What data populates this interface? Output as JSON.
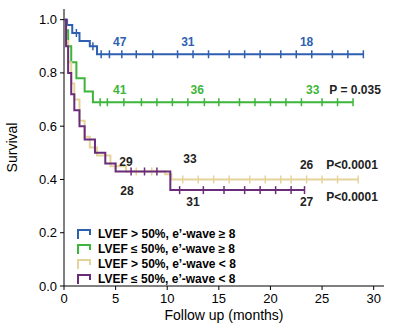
{
  "chart_data": {
    "type": "step",
    "x_label": "Follow up (months)",
    "y_label": "Survival",
    "xlim": [
      0,
      31
    ],
    "xticks": [
      0,
      5,
      10,
      15,
      20,
      25,
      30
    ],
    "ylim": [
      0,
      1.04
    ],
    "yticks": [
      {
        "value": 0,
        "label": "0.0"
      },
      {
        "value": 0.2,
        "label": "0.2"
      },
      {
        "value": 0.4,
        "label": "0.4"
      },
      {
        "value": 0.6,
        "label": "0.6"
      },
      {
        "value": 0.8,
        "label": "0.8"
      },
      {
        "value": 1,
        "label": "1.0"
      }
    ],
    "legend": "lower left",
    "grid": false,
    "series": [
      {
        "name": "LVEF > 50%, e’-wave ≥ 8",
        "color": "#2e5fb0",
        "marker": "tick",
        "x": [
          0,
          0.3,
          0.8,
          1.5,
          2.5,
          3.2,
          29
        ],
        "values": [
          1,
          0.98,
          0.95,
          0.92,
          0.9,
          0.87,
          0.87
        ],
        "censored": [
          1.2,
          2.8,
          3.6,
          4.4,
          5.6,
          7,
          8.6,
          11,
          12.5,
          14,
          16,
          17.5,
          19,
          21,
          22.5,
          24,
          26,
          27.5,
          29
        ]
      },
      {
        "name": "LVEF ≤ 50%, e’-wave ≥ 8",
        "color": "#3db53a",
        "marker": "tick",
        "x": [
          0,
          0.2,
          0.4,
          0.7,
          1.2,
          2,
          2.8,
          28
        ],
        "values": [
          1,
          0.96,
          0.9,
          0.84,
          0.78,
          0.73,
          0.69,
          0.69
        ],
        "censored": [
          3.5,
          4.2,
          5.8,
          7.5,
          9,
          10.5,
          12,
          13.6,
          15,
          17,
          18.5,
          20,
          21.5,
          23,
          25,
          26.5,
          28
        ]
      },
      {
        "name": "LVEF > 50%, e’-wave < 8",
        "color": "#e5d49a",
        "marker": "tick",
        "x": [
          0,
          0.2,
          0.4,
          0.7,
          1,
          1.5,
          2,
          2.5,
          3.2,
          4.5,
          6,
          9.8,
          10.4,
          28.5
        ],
        "values": [
          1,
          0.92,
          0.84,
          0.76,
          0.7,
          0.62,
          0.56,
          0.52,
          0.49,
          0.45,
          0.43,
          0.42,
          0.4,
          0.4
        ],
        "censored": [
          5,
          7,
          8.5,
          11.5,
          13,
          14.5,
          16,
          18,
          19.5,
          21,
          22,
          23.5,
          25,
          26.5,
          28.5
        ]
      },
      {
        "name": "LVEF ≤ 50%, e’-wave < 8",
        "color": "#6a2c7a",
        "marker": "tick",
        "x": [
          0,
          0.2,
          0.4,
          0.7,
          1,
          1.5,
          2,
          3,
          4,
          5,
          10.3,
          23.3
        ],
        "values": [
          1,
          0.9,
          0.8,
          0.72,
          0.66,
          0.6,
          0.55,
          0.5,
          0.46,
          0.43,
          0.36,
          0.36
        ],
        "censored": [
          6.5,
          7.8,
          9,
          11.2,
          13.5,
          15.5,
          17.5,
          19,
          20.5,
          22,
          23.3
        ]
      }
    ],
    "annotations": [
      {
        "text": "47",
        "x": 5.4,
        "y": 0.9,
        "color": "#2e5fb0"
      },
      {
        "text": "31",
        "x": 12,
        "y": 0.9,
        "color": "#2e5fb0"
      },
      {
        "text": "18",
        "x": 23.5,
        "y": 0.9,
        "color": "#2e5fb0"
      },
      {
        "text": "41",
        "x": 5.4,
        "y": 0.72,
        "color": "#3db53a"
      },
      {
        "text": "36",
        "x": 12.9,
        "y": 0.72,
        "color": "#3db53a"
      },
      {
        "text": "33",
        "x": 24.1,
        "y": 0.72,
        "color": "#3db53a"
      },
      {
        "text": "P = 0.035",
        "x": 28.2,
        "y": 0.72,
        "color": "#222222"
      },
      {
        "text": "29",
        "x": 6,
        "y": 0.45,
        "color": "#222222"
      },
      {
        "text": "33",
        "x": 12.2,
        "y": 0.46,
        "color": "#222222"
      },
      {
        "text": "26",
        "x": 23.5,
        "y": 0.44,
        "color": "#222222"
      },
      {
        "text": "P<0.0001",
        "x": 27.9,
        "y": 0.44,
        "color": "#222222"
      },
      {
        "text": "28",
        "x": 6.1,
        "y": 0.34,
        "color": "#222222"
      },
      {
        "text": "31",
        "x": 12.5,
        "y": 0.3,
        "color": "#222222"
      },
      {
        "text": "27",
        "x": 23.5,
        "y": 0.3,
        "color": "#222222"
      },
      {
        "text": "P<0.0001",
        "x": 27.9,
        "y": 0.32,
        "color": "#222222"
      }
    ]
  }
}
